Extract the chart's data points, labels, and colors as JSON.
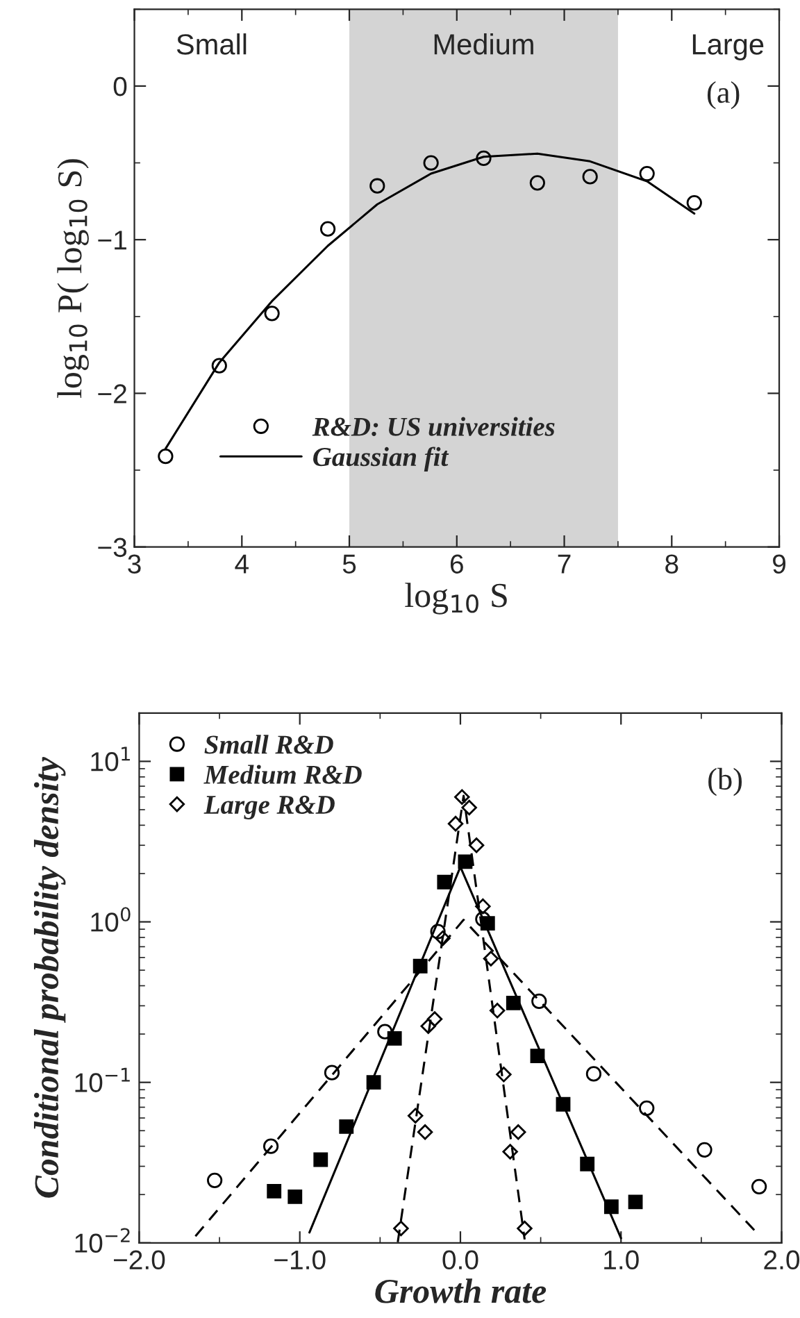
{
  "chart_data": [
    {
      "type": "scatter",
      "xlabel": "log$_{10}$ S",
      "ylabel": "log$_{10}$ P( log$_{10}$ S)",
      "xlim": [
        3,
        9
      ],
      "ylim": [
        -3,
        0.5
      ],
      "xticks": [
        3,
        4,
        5,
        6,
        7,
        8,
        9
      ],
      "yticks": [
        {
          "value": -3,
          "label": "−3"
        },
        {
          "value": -2,
          "label": "−2"
        },
        {
          "value": -1,
          "label": "−1"
        },
        0
      ],
      "bands": [
        {
          "axis": "x",
          "from": 5,
          "to": 7.5,
          "label": "Medium",
          "color": "#d4d4d4"
        }
      ],
      "annotations": [
        "Small",
        "Large",
        "(a)"
      ],
      "legend": "bottom left",
      "grid": false,
      "series": [
        {
          "name": "R&D: US universities",
          "marker": "circle",
          "color": "#000000",
          "x": [
            3.29,
            3.79,
            4.28,
            4.8,
            5.26,
            5.76,
            6.25,
            6.75,
            7.24,
            7.77,
            8.21
          ],
          "values": [
            -2.41,
            -1.82,
            -1.48,
            -0.93,
            -0.65,
            -0.5,
            -0.47,
            -0.63,
            -0.59,
            -0.57,
            -0.76
          ]
        },
        {
          "name": "Gaussian fit",
          "type": "line",
          "line_style": "solid",
          "color": "#000000",
          "x": [
            3.29,
            3.79,
            4.28,
            4.8,
            5.26,
            5.76,
            6.25,
            6.75,
            7.24,
            7.77,
            8.21
          ],
          "values": [
            -2.36,
            -1.8,
            -1.4,
            -1.04,
            -0.77,
            -0.57,
            -0.46,
            -0.44,
            -0.49,
            -0.62,
            -0.83
          ]
        }
      ]
    },
    {
      "type": "scatter",
      "xlabel": "Growth rate",
      "ylabel": "Conditional probability density",
      "log": "y",
      "xlim": [
        -2.0,
        2.0
      ],
      "ylim": [
        0.01,
        20
      ],
      "xticks": [
        {
          "value": -2,
          "label": "−2.0"
        },
        {
          "value": -1,
          "label": "−1.0"
        },
        {
          "value": 0,
          "label": "0.0"
        },
        {
          "value": 1,
          "label": "1.0"
        },
        {
          "value": 2,
          "label": "2.0"
        }
      ],
      "yticks": [
        {
          "value": 0.01,
          "label": "10$^{−2}$"
        },
        {
          "value": 0.1,
          "label": "10$^{−1}$"
        },
        {
          "value": 1,
          "label": "10$^{0}$"
        },
        {
          "value": 10,
          "label": "10$^{1}$"
        }
      ],
      "annotations": [
        "(b)"
      ],
      "legend": "top left",
      "grid": false,
      "series": [
        {
          "name": "Small R&D",
          "marker": "circle",
          "color": "#000000",
          "x": [
            -1.53,
            -1.18,
            -0.8,
            -0.47,
            -0.14,
            0.14,
            0.49,
            0.83,
            1.16,
            1.52,
            1.86
          ],
          "values": [
            0.0245,
            0.04,
            0.115,
            0.207,
            0.87,
            1.04,
            0.32,
            0.113,
            0.069,
            0.038,
            0.0224
          ]
        },
        {
          "name": "Medium R&D",
          "marker": "square",
          "color": "#000000",
          "x": [
            -1.16,
            -1.03,
            -0.87,
            -0.71,
            -0.54,
            -0.41,
            -0.25,
            -0.1,
            0.03,
            0.17,
            0.33,
            0.48,
            0.64,
            0.79,
            0.94,
            1.09
          ],
          "values": [
            0.021,
            0.0194,
            0.033,
            0.053,
            0.1,
            0.188,
            0.53,
            1.77,
            2.37,
            0.98,
            0.312,
            0.146,
            0.073,
            0.031,
            0.0168,
            0.018
          ]
        },
        {
          "name": "Large R&D",
          "marker": "diamond",
          "color": "#000000",
          "x": [
            -0.37,
            -0.28,
            -0.22,
            -0.2,
            -0.16,
            -0.11,
            -0.03,
            0.01,
            0.055,
            0.1,
            0.14,
            0.19,
            0.23,
            0.27,
            0.31,
            0.36,
            0.4
          ],
          "values": [
            0.0123,
            0.062,
            0.049,
            0.224,
            0.248,
            0.79,
            4.09,
            6.0,
            5.15,
            3.0,
            1.25,
            0.59,
            0.28,
            0.112,
            0.037,
            0.049,
            0.0123
          ]
        },
        {
          "type": "line",
          "line_style": "dashed",
          "color": "#000000",
          "x": [
            -1.65,
            0.02,
            1.83
          ],
          "values": [
            0.011,
            1.03,
            0.012
          ]
        },
        {
          "type": "line",
          "line_style": "solid",
          "color": "#000000",
          "x": [
            -0.94,
            0.0,
            1.0
          ],
          "values": [
            0.0116,
            2.2,
            0.0107
          ]
        },
        {
          "type": "line",
          "line_style": "dashed",
          "color": "#000000",
          "x": [
            -0.39,
            0.02,
            0.4
          ],
          "values": [
            0.0101,
            6.1,
            0.0105
          ]
        }
      ]
    }
  ]
}
